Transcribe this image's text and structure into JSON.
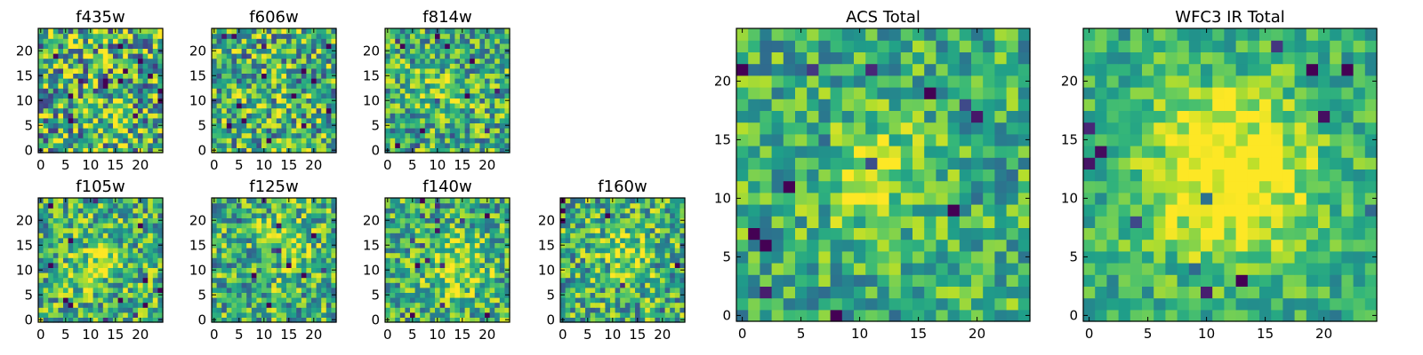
{
  "figure": {
    "colormap": "viridis",
    "panel_titles": [
      "f435w",
      "f606w",
      "f814w",
      "f105w",
      "f125w",
      "f140w",
      "f160w",
      "ACS Total",
      "WFC3 IR Total"
    ]
  },
  "chart_data": [
    {
      "type": "heatmap",
      "title": "f435w",
      "grid": [
        25,
        25
      ],
      "xlim": [
        0,
        25
      ],
      "ylim": [
        0,
        25
      ],
      "xticks": [
        0,
        5,
        10,
        15,
        20
      ],
      "yticks": [
        0,
        5,
        10,
        15,
        20
      ],
      "colormap": "viridis",
      "noise": 0.9,
      "center": [
        14,
        6
      ],
      "blob_width": 3,
      "blob_amp": 0.1
    },
    {
      "type": "heatmap",
      "title": "f606w",
      "grid": [
        25,
        25
      ],
      "xlim": [
        0,
        25
      ],
      "ylim": [
        0,
        25
      ],
      "xticks": [
        0,
        5,
        10,
        15,
        20
      ],
      "yticks": [
        0,
        5,
        10,
        15,
        20
      ],
      "colormap": "viridis",
      "noise": 0.8,
      "center": [
        12,
        12
      ],
      "blob_width": 3,
      "blob_amp": 0.15
    },
    {
      "type": "heatmap",
      "title": "f814w",
      "grid": [
        25,
        25
      ],
      "xlim": [
        0,
        25
      ],
      "ylim": [
        0,
        25
      ],
      "xticks": [
        0,
        5,
        10,
        15,
        20
      ],
      "yticks": [
        0,
        5,
        10,
        15,
        20
      ],
      "colormap": "viridis",
      "noise": 0.7,
      "center": [
        11,
        11
      ],
      "blob_width": 3,
      "blob_amp": 0.25
    },
    {
      "type": "heatmap",
      "title": "f105w",
      "grid": [
        25,
        25
      ],
      "xlim": [
        0,
        25
      ],
      "ylim": [
        0,
        25
      ],
      "xticks": [
        0,
        5,
        10,
        15,
        20
      ],
      "yticks": [
        0,
        5,
        10,
        15,
        20
      ],
      "colormap": "viridis",
      "noise": 0.7,
      "center": [
        11,
        12
      ],
      "blob_width": 4,
      "blob_amp": 0.25
    },
    {
      "type": "heatmap",
      "title": "f125w",
      "grid": [
        25,
        25
      ],
      "xlim": [
        0,
        25
      ],
      "ylim": [
        0,
        25
      ],
      "xticks": [
        0,
        5,
        10,
        15,
        20
      ],
      "yticks": [
        0,
        5,
        10,
        15,
        20
      ],
      "colormap": "viridis",
      "noise": 0.7,
      "center": [
        15,
        15
      ],
      "blob_width": 4,
      "blob_amp": 0.25
    },
    {
      "type": "heatmap",
      "title": "f140w",
      "grid": [
        25,
        25
      ],
      "xlim": [
        0,
        25
      ],
      "ylim": [
        0,
        25
      ],
      "xticks": [
        0,
        5,
        10,
        15,
        20
      ],
      "yticks": [
        0,
        5,
        10,
        15,
        20
      ],
      "colormap": "viridis",
      "noise": 0.65,
      "center": [
        14,
        10
      ],
      "blob_width": 4,
      "blob_amp": 0.3
    },
    {
      "type": "heatmap",
      "title": "f160w",
      "grid": [
        25,
        25
      ],
      "xlim": [
        0,
        25
      ],
      "ylim": [
        0,
        25
      ],
      "xticks": [
        0,
        5,
        10,
        15,
        20
      ],
      "yticks": [
        0,
        5,
        10,
        15,
        20
      ],
      "colormap": "viridis",
      "noise": 0.7,
      "center": [
        13,
        13
      ],
      "blob_width": 4,
      "blob_amp": 0.3
    },
    {
      "type": "heatmap",
      "title": "ACS Total",
      "grid": [
        25,
        25
      ],
      "xlim": [
        0,
        25
      ],
      "ylim": [
        0,
        25
      ],
      "xticks": [
        0,
        5,
        10,
        15,
        20
      ],
      "yticks": [
        0,
        5,
        10,
        15,
        20
      ],
      "colormap": "viridis",
      "noise": 0.55,
      "center": [
        11,
        12
      ],
      "blob_width": 3,
      "blob_amp": 0.35
    },
    {
      "type": "heatmap",
      "title": "WFC3 IR Total",
      "grid": [
        25,
        25
      ],
      "xlim": [
        0,
        25
      ],
      "ylim": [
        0,
        25
      ],
      "xticks": [
        0,
        5,
        10,
        15,
        20
      ],
      "yticks": [
        0,
        5,
        10,
        15,
        20
      ],
      "colormap": "viridis",
      "noise": 0.4,
      "center": [
        12,
        12
      ],
      "blob_width": 5,
      "blob_amp": 0.5
    }
  ]
}
